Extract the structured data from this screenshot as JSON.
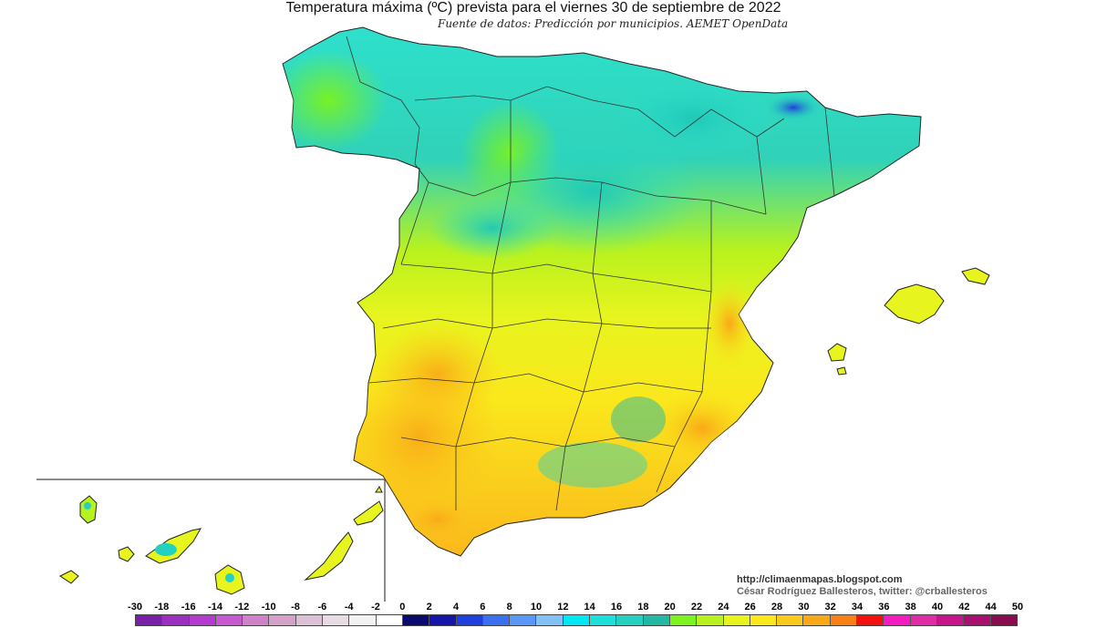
{
  "title": "Temperatura máxima (ºC) prevista para el viernes 30 de septiembre de 2022",
  "subtitle": "Fuente de datos: Predicción por municipios. AEMET OpenData",
  "credits": {
    "url": "http://climaenmapas.blogspot.com",
    "author": "César Rodríguez Ballesteros, twitter: @crballesteros"
  },
  "legend": {
    "ticks": [
      "-30",
      "-18",
      "-16",
      "-14",
      "-12",
      "-10",
      "-8",
      "-6",
      "-4",
      "-2",
      "0",
      "2",
      "4",
      "6",
      "8",
      "10",
      "12",
      "14",
      "16",
      "18",
      "20",
      "22",
      "24",
      "26",
      "28",
      "30",
      "32",
      "34",
      "36",
      "38",
      "40",
      "42",
      "44",
      "50"
    ],
    "colors": [
      "#7a1fa8",
      "#9a2fc0",
      "#b43ccc",
      "#c55ad0",
      "#cf82c8",
      "#d4a2c8",
      "#dcc0d6",
      "#e7dce4",
      "#f2f2f2",
      "#ffffff",
      "#0a0a6e",
      "#1515a8",
      "#1f3fdc",
      "#3a70f0",
      "#5a96f5",
      "#82c0f5",
      "#00e8f2",
      "#1ce0da",
      "#24d0c0",
      "#22b8a4",
      "#7cf21e",
      "#b8f21e",
      "#e8f41e",
      "#fae81c",
      "#fbc81c",
      "#f9a818",
      "#f98014",
      "#f51010",
      "#f21cc0",
      "#e02ca6",
      "#c8148a",
      "#a81070",
      "#8a0c50"
    ]
  },
  "map": {
    "regions": [
      "Península",
      "Islas Baleares",
      "Islas Canarias"
    ]
  }
}
